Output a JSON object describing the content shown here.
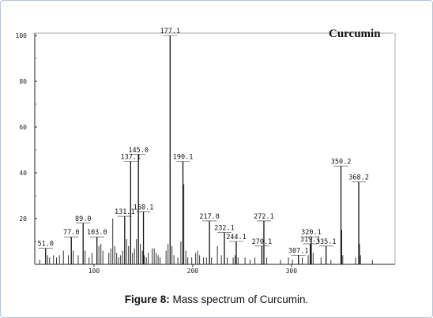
{
  "caption": {
    "label": "Figure 8:",
    "text": "Mass spectrum of Curcumin."
  },
  "chart_data": {
    "type": "bar",
    "title": "Curcumin",
    "xlabel": "",
    "ylabel": "",
    "xlim": [
      40,
      405
    ],
    "ylim": [
      0,
      100
    ],
    "x_ticks": [
      100,
      200,
      300
    ],
    "x_tick_labels": [
      "100",
      "200",
      "300"
    ],
    "y_ticks": [
      20,
      40,
      60,
      80,
      100
    ],
    "y_tick_labels": [
      "20",
      "40",
      "60",
      "80",
      "100"
    ],
    "grid": false,
    "legend": "top-right",
    "peaks": [
      {
        "mz": 51.0,
        "intensity": 7,
        "label": "51.0"
      },
      {
        "mz": 77.0,
        "intensity": 12,
        "label": "77.0"
      },
      {
        "mz": 89.0,
        "intensity": 18,
        "label": "89.0"
      },
      {
        "mz": 103.0,
        "intensity": 12,
        "label": "103.0"
      },
      {
        "mz": 131.1,
        "intensity": 21,
        "label": "131.1"
      },
      {
        "mz": 137.1,
        "intensity": 45,
        "label": "137.1"
      },
      {
        "mz": 145.0,
        "intensity": 48,
        "label": "145.0"
      },
      {
        "mz": 150.1,
        "intensity": 23,
        "label": "150.1"
      },
      {
        "mz": 177.1,
        "intensity": 100,
        "label": "177.1"
      },
      {
        "mz": 190.1,
        "intensity": 45,
        "label": "190.1"
      },
      {
        "mz": 217.0,
        "intensity": 19,
        "label": "217.0"
      },
      {
        "mz": 232.1,
        "intensity": 14,
        "label": "232.1"
      },
      {
        "mz": 244.1,
        "intensity": 10,
        "label": "244.1"
      },
      {
        "mz": 270.1,
        "intensity": 8,
        "label": "270.1"
      },
      {
        "mz": 272.1,
        "intensity": 19,
        "label": "272.1"
      },
      {
        "mz": 307.1,
        "intensity": 4,
        "label": "307.1"
      },
      {
        "mz": 319.1,
        "intensity": 9,
        "label": "319.1"
      },
      {
        "mz": 320.1,
        "intensity": 12,
        "label": "320.1"
      },
      {
        "mz": 335.1,
        "intensity": 8,
        "label": "335.1"
      },
      {
        "mz": 350.2,
        "intensity": 43,
        "label": "350.2"
      },
      {
        "mz": 368.2,
        "intensity": 36,
        "label": "368.2"
      }
    ],
    "minor_peaks": [
      {
        "mz": 45,
        "intensity": 2
      },
      {
        "mz": 53,
        "intensity": 4
      },
      {
        "mz": 55,
        "intensity": 3
      },
      {
        "mz": 59,
        "intensity": 4
      },
      {
        "mz": 62,
        "intensity": 3
      },
      {
        "mz": 65,
        "intensity": 4
      },
      {
        "mz": 69,
        "intensity": 6
      },
      {
        "mz": 74,
        "intensity": 4
      },
      {
        "mz": 79,
        "intensity": 6
      },
      {
        "mz": 84,
        "intensity": 4
      },
      {
        "mz": 91,
        "intensity": 6
      },
      {
        "mz": 95,
        "intensity": 3
      },
      {
        "mz": 98,
        "intensity": 5
      },
      {
        "mz": 105,
        "intensity": 8
      },
      {
        "mz": 107,
        "intensity": 9
      },
      {
        "mz": 109,
        "intensity": 6
      },
      {
        "mz": 115,
        "intensity": 5
      },
      {
        "mz": 117,
        "intensity": 7
      },
      {
        "mz": 119,
        "intensity": 20
      },
      {
        "mz": 121,
        "intensity": 8
      },
      {
        "mz": 123,
        "intensity": 5
      },
      {
        "mz": 125,
        "intensity": 3
      },
      {
        "mz": 127,
        "intensity": 4
      },
      {
        "mz": 129,
        "intensity": 6
      },
      {
        "mz": 133,
        "intensity": 11
      },
      {
        "mz": 135,
        "intensity": 8
      },
      {
        "mz": 139,
        "intensity": 5
      },
      {
        "mz": 141,
        "intensity": 7
      },
      {
        "mz": 143,
        "intensity": 11
      },
      {
        "mz": 147,
        "intensity": 9
      },
      {
        "mz": 149,
        "intensity": 6
      },
      {
        "mz": 151,
        "intensity": 4
      },
      {
        "mz": 153,
        "intensity": 3
      },
      {
        "mz": 155,
        "intensity": 5
      },
      {
        "mz": 159,
        "intensity": 7
      },
      {
        "mz": 161,
        "intensity": 7
      },
      {
        "mz": 163,
        "intensity": 5
      },
      {
        "mz": 165,
        "intensity": 4
      },
      {
        "mz": 167,
        "intensity": 3
      },
      {
        "mz": 173,
        "intensity": 6
      },
      {
        "mz": 175,
        "intensity": 9
      },
      {
        "mz": 179,
        "intensity": 8
      },
      {
        "mz": 181,
        "intensity": 4
      },
      {
        "mz": 185,
        "intensity": 3
      },
      {
        "mz": 188,
        "intensity": 10
      },
      {
        "mz": 191,
        "intensity": 35
      },
      {
        "mz": 193,
        "intensity": 6
      },
      {
        "mz": 195,
        "intensity": 3
      },
      {
        "mz": 199,
        "intensity": 3
      },
      {
        "mz": 203,
        "intensity": 5
      },
      {
        "mz": 205,
        "intensity": 6
      },
      {
        "mz": 207,
        "intensity": 4
      },
      {
        "mz": 211,
        "intensity": 3
      },
      {
        "mz": 214,
        "intensity": 3
      },
      {
        "mz": 219,
        "intensity": 3
      },
      {
        "mz": 225,
        "intensity": 8
      },
      {
        "mz": 229,
        "intensity": 4
      },
      {
        "mz": 235,
        "intensity": 3
      },
      {
        "mz": 241,
        "intensity": 3
      },
      {
        "mz": 243,
        "intensity": 4
      },
      {
        "mz": 246,
        "intensity": 3
      },
      {
        "mz": 253,
        "intensity": 3
      },
      {
        "mz": 258,
        "intensity": 2
      },
      {
        "mz": 263,
        "intensity": 3
      },
      {
        "mz": 275,
        "intensity": 3
      },
      {
        "mz": 289,
        "intensity": 2
      },
      {
        "mz": 297,
        "intensity": 3
      },
      {
        "mz": 301,
        "intensity": 2
      },
      {
        "mz": 311,
        "intensity": 3
      },
      {
        "mz": 317,
        "intensity": 4
      },
      {
        "mz": 322,
        "intensity": 5
      },
      {
        "mz": 330,
        "intensity": 3
      },
      {
        "mz": 340,
        "intensity": 2
      },
      {
        "mz": 351,
        "intensity": 15
      },
      {
        "mz": 352,
        "intensity": 4
      },
      {
        "mz": 365,
        "intensity": 3
      },
      {
        "mz": 369,
        "intensity": 9
      },
      {
        "mz": 370,
        "intensity": 4
      },
      {
        "mz": 382,
        "intensity": 2
      }
    ]
  }
}
